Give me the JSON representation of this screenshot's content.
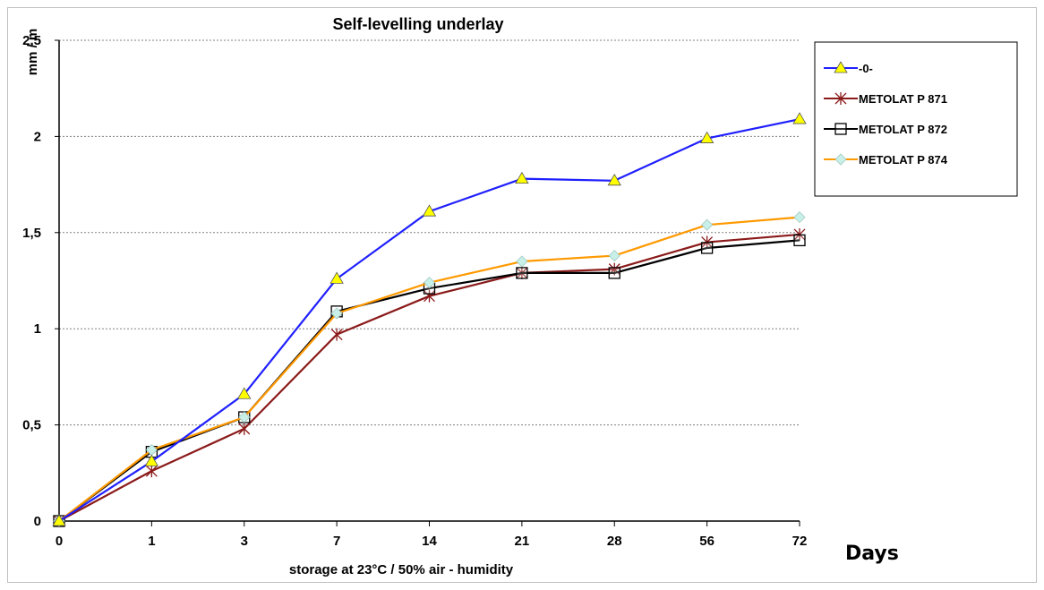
{
  "chart_data": {
    "type": "line",
    "title": "Self-levelling underlay",
    "xlabel": "storage at 23°C / 50% air - humidity",
    "ylabel": "mm / m",
    "x_unit_label": "Days",
    "categories": [
      "0",
      "1",
      "3",
      "7",
      "14",
      "21",
      "28",
      "56",
      "72"
    ],
    "yticks": [
      "0",
      "0,5",
      "1",
      "1,5",
      "2",
      "2,5"
    ],
    "ylim": [
      0,
      2.5
    ],
    "grid": true,
    "legend_position": "right",
    "series": [
      {
        "name": "-0-",
        "color": "#1f1fff",
        "marker": "triangle",
        "marker_fill": "#ffff00",
        "values": [
          0,
          0.31,
          0.66,
          1.26,
          1.61,
          1.78,
          1.77,
          1.99,
          2.09
        ]
      },
      {
        "name": "METOLAT P 871",
        "color": "#8b1a1a",
        "marker": "asterisk",
        "marker_fill": "#8b1a1a",
        "values": [
          0,
          0.26,
          0.48,
          0.97,
          1.17,
          1.29,
          1.31,
          1.45,
          1.49
        ]
      },
      {
        "name": "METOLAT P 872",
        "color": "#000000",
        "marker": "square",
        "marker_fill": "none",
        "values": [
          0,
          0.36,
          0.54,
          1.09,
          1.21,
          1.29,
          1.29,
          1.42,
          1.46
        ]
      },
      {
        "name": "METOLAT P 874",
        "color": "#ff9900",
        "marker": "diamond",
        "marker_fill": "#c8f0e8",
        "values": [
          0,
          0.37,
          0.54,
          1.08,
          1.24,
          1.35,
          1.38,
          1.54,
          1.58
        ]
      }
    ]
  }
}
